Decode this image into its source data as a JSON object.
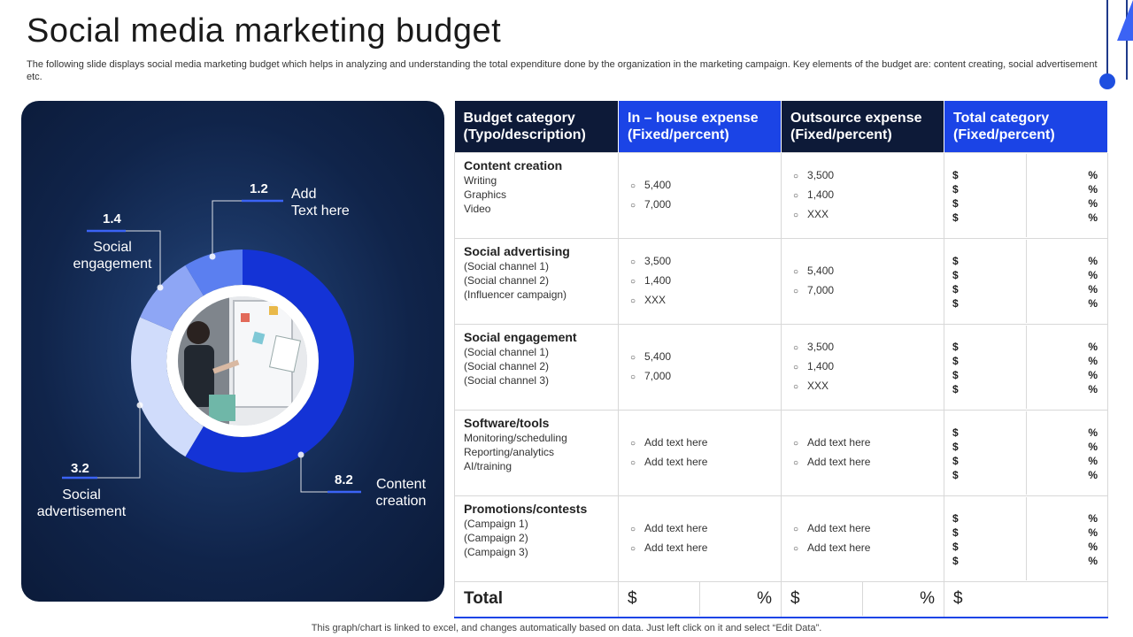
{
  "title": "Social media marketing budget",
  "subtitle": "The following slide displays social media marketing budget which helps in analyzing and understanding the total expenditure done by the organization  in the marketing campaign. Key elements of the budget are: content creating, social advertisement etc.",
  "footer": "This graph/chart is linked to excel,  and changes automatically based on data. Just left click on it and select “Edit Data”.",
  "colors": {
    "panel_dark": "#0b1a38",
    "accent_blue": "#1b44e6",
    "header_dark": "#0d1a38"
  },
  "chart_data": {
    "type": "pie",
    "variant": "donut",
    "series": [
      {
        "name": "Content creation",
        "value": 8.2,
        "color": "#1433d6"
      },
      {
        "name": "Social advertisement",
        "value": 3.2,
        "color": "#d0dcfb"
      },
      {
        "name": "Social engagement",
        "value": 1.4,
        "color": "#8ea6f5"
      },
      {
        "name": "Add Text here",
        "value": 1.2,
        "color": "#5b7ff0"
      }
    ],
    "labels": {
      "content_creation": {
        "value": "8.2",
        "text": "Content\ncreation"
      },
      "social_advertisement": {
        "value": "3.2",
        "text": "Social\nadvertisement"
      },
      "social_engagement": {
        "value": "1.4",
        "text": "Social\nengagement"
      },
      "add_text": {
        "value": "1.2",
        "text": "Add\nText here"
      }
    },
    "center_image": "woman-presenting-whiteboard"
  },
  "table": {
    "headers": [
      "Budget category (Typo/description)",
      "In – house expense (Fixed/percent)",
      "Outsource  expense (Fixed/percent)",
      "Total category (Fixed/percent)"
    ],
    "rows": [
      {
        "category": "Content creation",
        "items": [
          "Writing",
          "Graphics",
          "Video"
        ],
        "inhouse": [
          "5,400",
          "7,000"
        ],
        "outsource": [
          "3,500",
          "1,400",
          "XXX"
        ],
        "total_dollar": [
          "$",
          "$",
          "$",
          "$"
        ],
        "total_pct": [
          "%",
          "%",
          "%",
          "%"
        ]
      },
      {
        "category": "Social advertising",
        "items": [
          "(Social channel 1)",
          "(Social channel 2)",
          "(Influencer  campaign)"
        ],
        "inhouse": [
          "3,500",
          "1,400",
          "XXX"
        ],
        "outsource": [
          "5,400",
          "7,000"
        ],
        "total_dollar": [
          "$",
          "$",
          "$",
          "$"
        ],
        "total_pct": [
          "%",
          "%",
          "%",
          "%"
        ]
      },
      {
        "category": "Social engagement",
        "items": [
          "(Social channel 1)",
          "(Social channel 2)",
          "(Social channel 3)"
        ],
        "inhouse": [
          "5,400",
          "7,000"
        ],
        "outsource": [
          "3,500",
          "1,400",
          "XXX"
        ],
        "total_dollar": [
          "$",
          "$",
          "$",
          "$"
        ],
        "total_pct": [
          "%",
          "%",
          "%",
          "%"
        ]
      },
      {
        "category": "Software/tools",
        "items": [
          "Monitoring/scheduling",
          "Reporting/analytics",
          "AI/training"
        ],
        "inhouse": [
          "Add text here",
          "Add text here"
        ],
        "outsource": [
          "Add text here",
          "Add text here"
        ],
        "total_dollar": [
          "$",
          "$",
          "$",
          "$"
        ],
        "total_pct": [
          "%",
          "%",
          "%",
          "%"
        ]
      },
      {
        "category": "Promotions/contests",
        "items": [
          "(Campaign  1)",
          "(Campaign  2)",
          "(Campaign  3)"
        ],
        "inhouse": [
          "Add text here",
          "Add text here"
        ],
        "outsource": [
          "Add text here",
          "Add text here"
        ],
        "total_dollar": [
          "$",
          "$",
          "$",
          "$"
        ],
        "total_pct": [
          "%",
          "%",
          "%",
          "%"
        ]
      }
    ],
    "total_row": {
      "label": "Total",
      "inhouse_dollar": "$",
      "inhouse_pct": "%",
      "outsource_dollar": "$",
      "outsource_pct": "%",
      "total_dollar": "$"
    }
  }
}
